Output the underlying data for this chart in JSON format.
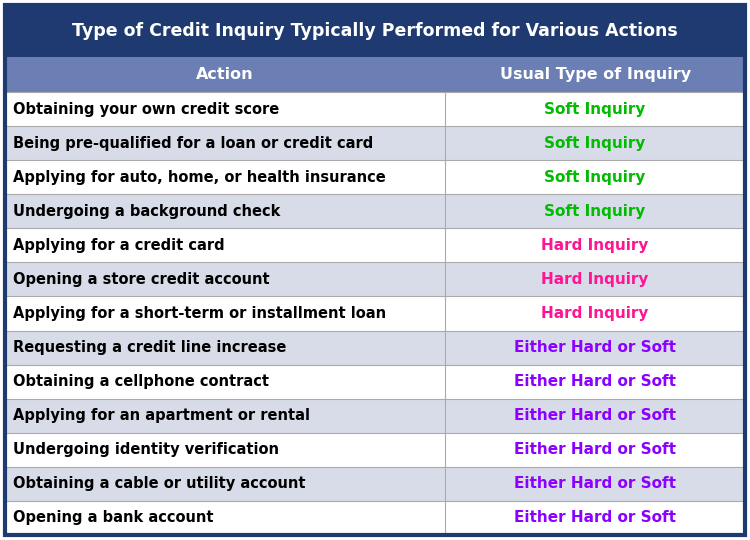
{
  "title": "Type of Credit Inquiry Typically Performed for Various Actions",
  "title_bg": "#1e3a70",
  "title_color": "#ffffff",
  "header_bg": "#6b7fb5",
  "header_color": "#ffffff",
  "header_action": "Action",
  "header_inquiry": "Usual Type of Inquiry",
  "col_split": 0.595,
  "rows": [
    {
      "action": "Obtaining your own credit score",
      "inquiry": "Soft Inquiry",
      "inquiry_color": "#00bb00"
    },
    {
      "action": "Being pre-qualified for a loan or credit card",
      "inquiry": "Soft Inquiry",
      "inquiry_color": "#00bb00"
    },
    {
      "action": "Applying for auto, home, or health insurance",
      "inquiry": "Soft Inquiry",
      "inquiry_color": "#00bb00"
    },
    {
      "action": "Undergoing a background check",
      "inquiry": "Soft Inquiry",
      "inquiry_color": "#00bb00"
    },
    {
      "action": "Applying for a credit card",
      "inquiry": "Hard Inquiry",
      "inquiry_color": "#ff1493"
    },
    {
      "action": "Opening a store credit account",
      "inquiry": "Hard Inquiry",
      "inquiry_color": "#ff1493"
    },
    {
      "action": "Applying for a short-term or installment loan",
      "inquiry": "Hard Inquiry",
      "inquiry_color": "#ff1493"
    },
    {
      "action": "Requesting a credit line increase",
      "inquiry": "Either Hard or Soft",
      "inquiry_color": "#8b00ff"
    },
    {
      "action": "Obtaining a cellphone contract",
      "inquiry": "Either Hard or Soft",
      "inquiry_color": "#8b00ff"
    },
    {
      "action": "Applying for an apartment or rental",
      "inquiry": "Either Hard or Soft",
      "inquiry_color": "#8b00ff"
    },
    {
      "action": "Undergoing identity verification",
      "inquiry": "Either Hard or Soft",
      "inquiry_color": "#8b00ff"
    },
    {
      "action": "Obtaining a cable or utility account",
      "inquiry": "Either Hard or Soft",
      "inquiry_color": "#8b00ff"
    },
    {
      "action": "Opening a bank account",
      "inquiry": "Either Hard or Soft",
      "inquiry_color": "#8b00ff"
    }
  ],
  "row_bg_even": "#ffffff",
  "row_bg_odd": "#d8dce8",
  "border_color": "#aaaaaa",
  "action_color": "#000000",
  "outer_border_color": "#1e3a70",
  "title_fontsize": 12.5,
  "header_fontsize": 11.5,
  "action_fontsize": 10.5,
  "inquiry_fontsize": 11.0
}
